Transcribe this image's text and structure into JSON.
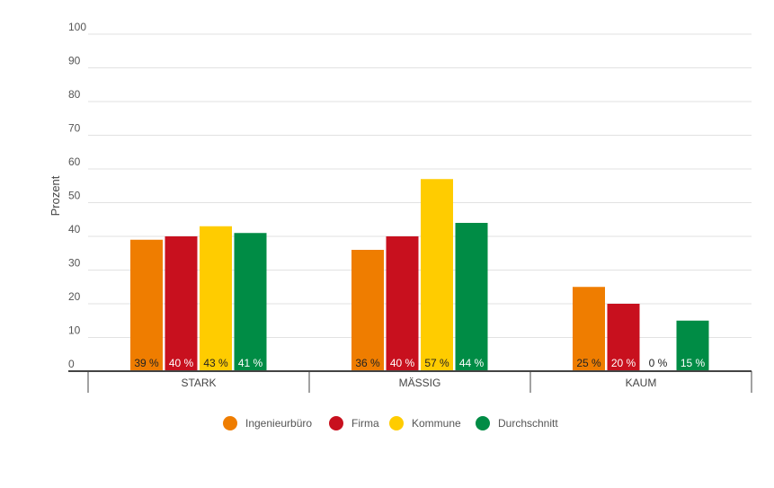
{
  "chart_data": {
    "type": "bar",
    "title": "",
    "xlabel": "",
    "ylabel": "Prozent",
    "ylim": [
      0,
      100
    ],
    "yticks": [
      0,
      10,
      20,
      30,
      40,
      50,
      60,
      70,
      80,
      90,
      100
    ],
    "grid": true,
    "legend_position": "bottom",
    "categories": [
      "STARK",
      "MÄSSIG",
      "KAUM"
    ],
    "series": [
      {
        "name": "Ingenieurbüro",
        "color": "#ef7d00",
        "label_color": "#222222",
        "values": [
          39,
          36,
          25
        ],
        "labels": [
          "39 %",
          "36 %",
          "25 %"
        ]
      },
      {
        "name": "Firma",
        "color": "#c8101e",
        "label_color": "#ffffff",
        "values": [
          40,
          40,
          20
        ],
        "labels": [
          "40 %",
          "40 %",
          "20 %"
        ]
      },
      {
        "name": "Kommune",
        "color": "#ffcc00",
        "label_color": "#222222",
        "values": [
          43,
          57,
          0
        ],
        "labels": [
          "43 %",
          "57 %",
          "0 %"
        ]
      },
      {
        "name": "Durchschnitt",
        "color": "#008c45",
        "label_color": "#ffffff",
        "values": [
          41,
          44,
          15
        ],
        "labels": [
          "41 %",
          "44 %",
          "15 %"
        ]
      }
    ]
  }
}
